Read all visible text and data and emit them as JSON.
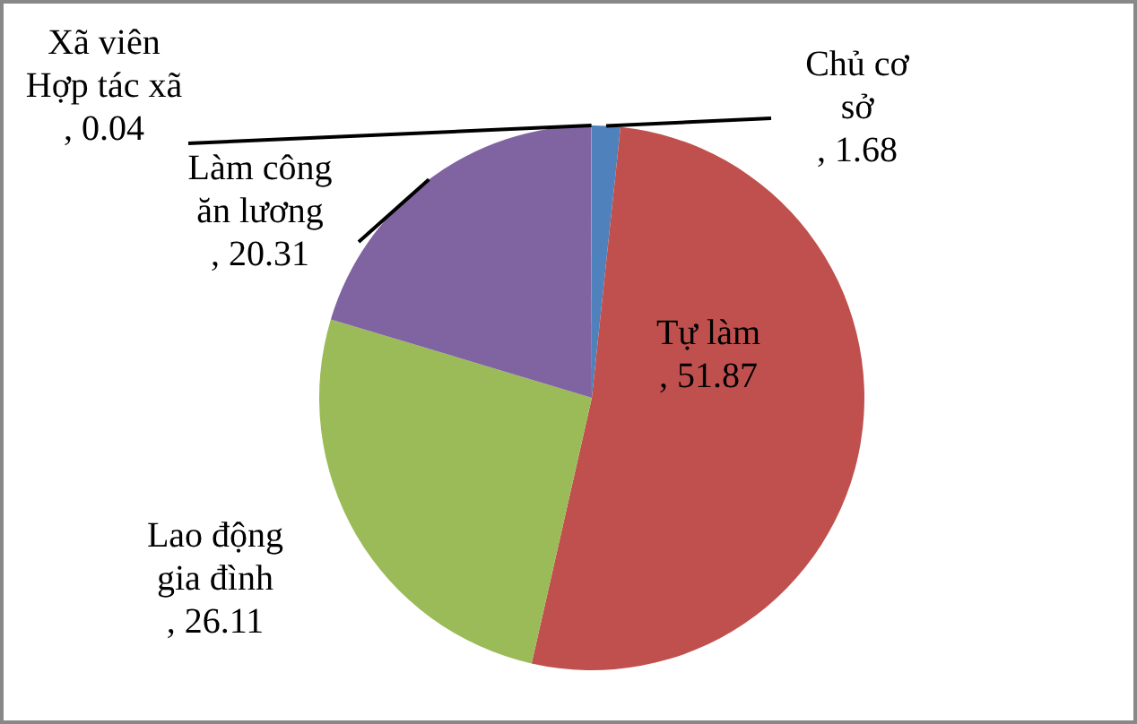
{
  "chart_data": {
    "type": "pie",
    "categories": [
      "Chủ cơ sở",
      "Tự làm",
      "Lao động gia đình",
      "Làm công ăn lương",
      "Xã viên Hợp tác xã"
    ],
    "values": [
      1.68,
      51.87,
      26.11,
      20.31,
      0.04
    ],
    "colors": [
      "#4f81bd",
      "#c0504d",
      "#9bbb59",
      "#8064a2",
      "#4bacc6"
    ],
    "value_labels": [
      ", 1.68",
      ", 51.87",
      ", 26.11",
      ", 20.31",
      ", 0.04"
    ],
    "legend": false
  }
}
